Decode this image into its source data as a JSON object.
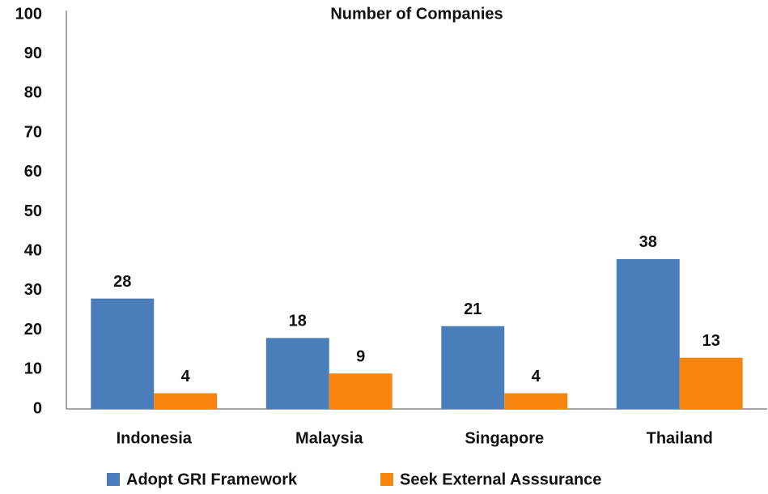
{
  "chart_data": {
    "type": "bar",
    "title": "Number of Companies",
    "categories": [
      "Indonesia",
      "Malaysia",
      "Singapore",
      "Thailand"
    ],
    "series": [
      {
        "name": "Adopt GRI Framework",
        "color": "#4a7ebb",
        "values": [
          28,
          18,
          21,
          38
        ]
      },
      {
        "name": "Seek External Asssurance",
        "color": "#f7850f",
        "values": [
          4,
          9,
          4,
          13
        ]
      }
    ],
    "ylim": [
      0,
      100
    ],
    "yticks": [
      0,
      10,
      20,
      30,
      40,
      50,
      60,
      70,
      80,
      90,
      100
    ],
    "grid": false,
    "legend": "bottom",
    "value_labels_shown": true
  }
}
